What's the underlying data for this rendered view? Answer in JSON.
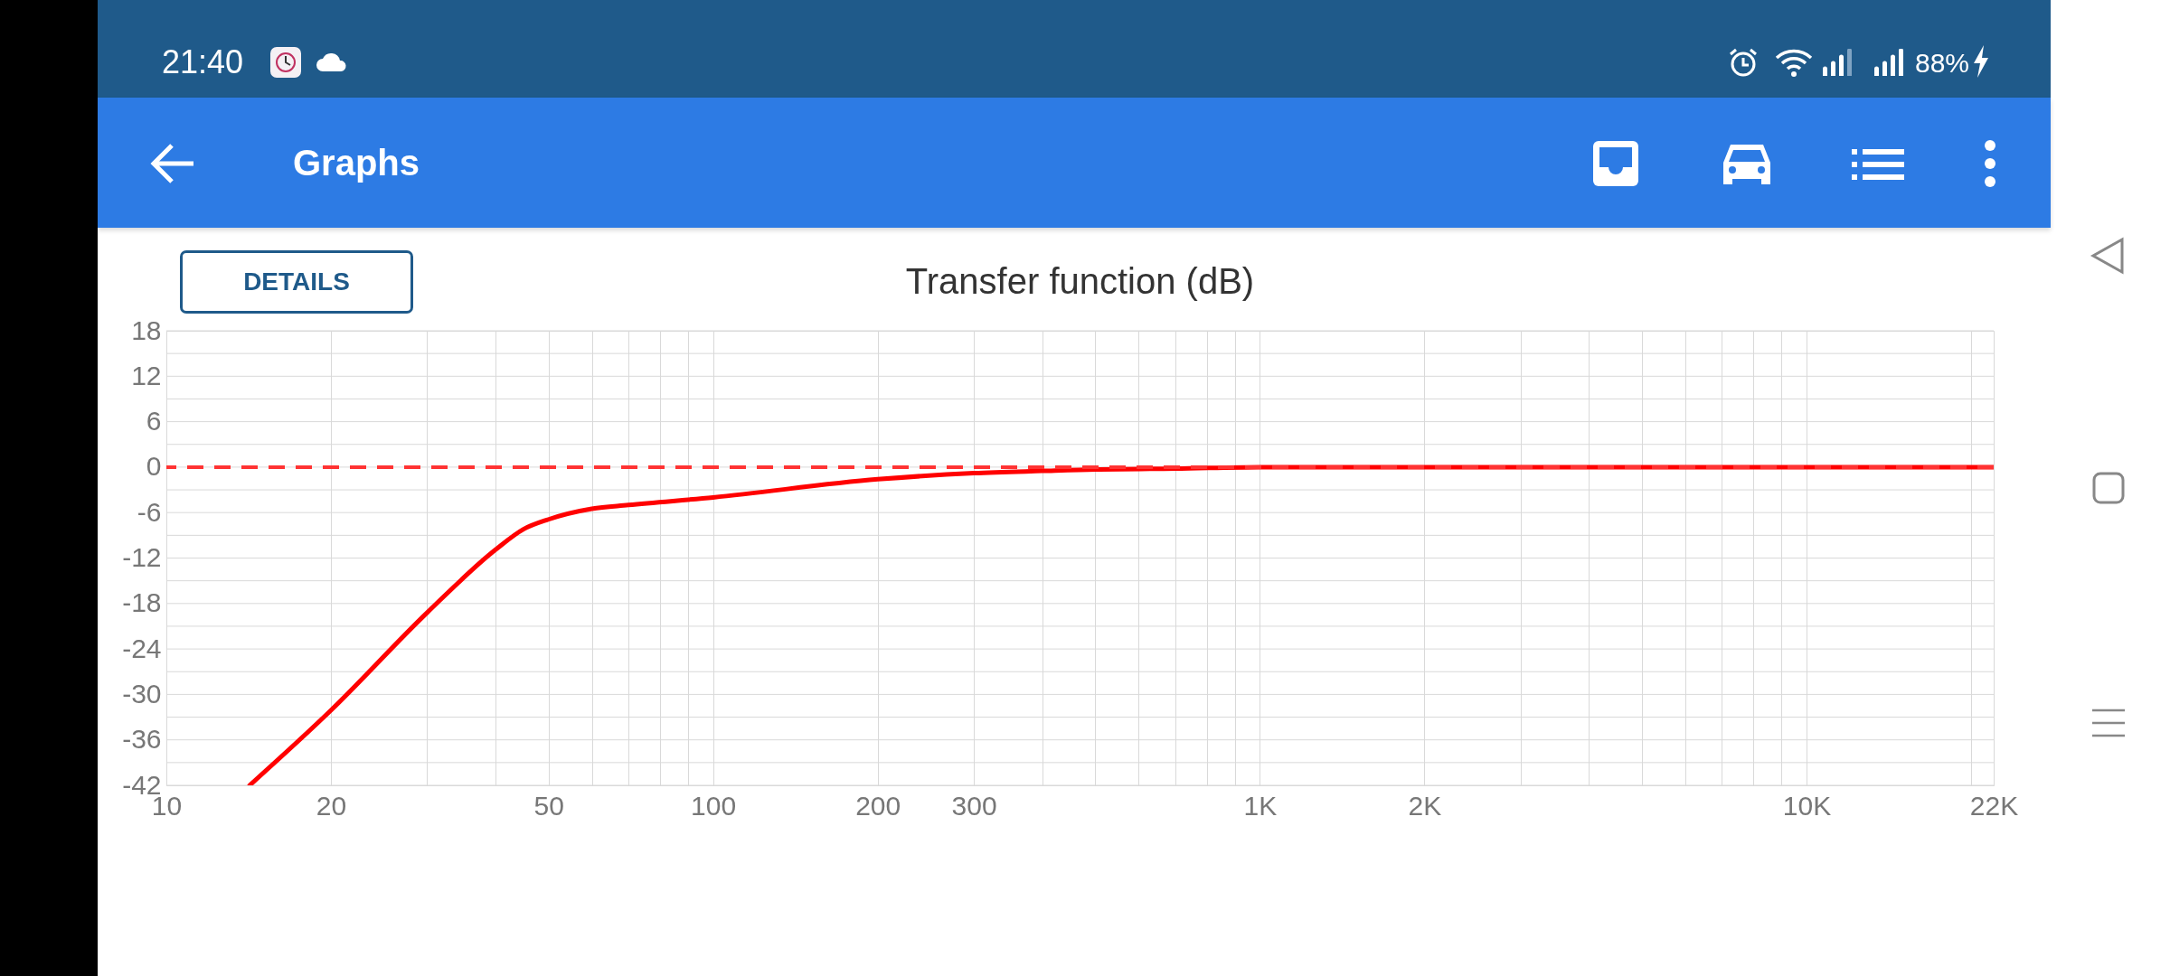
{
  "chart_data": {
    "type": "line",
    "title": "Transfer function (dB)",
    "x": [
      14.2,
      20,
      30,
      40,
      45,
      50,
      60,
      70,
      100,
      200,
      300,
      400,
      500,
      700,
      1000,
      2000,
      22000
    ],
    "series": [
      {
        "color": "#ff0000",
        "values": [
          -42,
          -32.1,
          -19.2,
          -10.9,
          -8.2,
          -6.9,
          -5.5,
          -5.0,
          -4.0,
          -1.6,
          -0.8,
          -0.5,
          -0.3,
          -0.2,
          0,
          0,
          0
        ]
      }
    ],
    "log": "x",
    "xlim": [
      10,
      22000
    ],
    "ylim": [
      -42,
      18
    ],
    "xticks": [
      10,
      20,
      {
        "value": 30,
        "label": null
      },
      {
        "value": 40,
        "label": null
      },
      50,
      {
        "value": 60,
        "label": null
      },
      {
        "value": 70,
        "label": null
      },
      {
        "value": 80,
        "label": null
      },
      {
        "value": 90,
        "label": null
      },
      100,
      200,
      300,
      {
        "value": 400,
        "label": null
      },
      {
        "value": 500,
        "label": null
      },
      {
        "value": 600,
        "label": null
      },
      {
        "value": 700,
        "label": null
      },
      {
        "value": 800,
        "label": null
      },
      {
        "value": 900,
        "label": null
      },
      {
        "value": 1000,
        "label": "1K"
      },
      {
        "value": 2000,
        "label": "2K"
      },
      {
        "value": 3000,
        "label": null
      },
      {
        "value": 4000,
        "label": null
      },
      {
        "value": 5000,
        "label": null
      },
      {
        "value": 6000,
        "label": null
      },
      {
        "value": 7000,
        "label": null
      },
      {
        "value": 8000,
        "label": null
      },
      {
        "value": 9000,
        "label": null
      },
      {
        "value": 10000,
        "label": "10K"
      },
      {
        "value": 20000,
        "label": null
      },
      {
        "value": 22000,
        "label": "22K"
      }
    ],
    "yticks": [
      -42,
      {
        "value": -39,
        "label": null
      },
      -36,
      {
        "value": -33,
        "label": null
      },
      -30,
      {
        "value": -27,
        "label": null
      },
      -24,
      {
        "value": -21,
        "label": null
      },
      -18,
      {
        "value": -15,
        "label": null
      },
      -12,
      {
        "value": -9,
        "label": null
      },
      -6,
      {
        "value": -3,
        "label": null
      },
      0,
      {
        "value": 3,
        "label": null
      },
      6,
      {
        "value": 9,
        "label": null
      },
      12,
      {
        "value": 15,
        "label": null
      },
      18
    ],
    "ref_lines": [
      {
        "axis": "y",
        "value": 0,
        "color": "#ff3333",
        "line_style": "dashed"
      }
    ],
    "grid": true,
    "line_style": "solid",
    "marker": "none",
    "annotations": [
      "21:40",
      "88%",
      "Graphs",
      "DETAILS"
    ]
  }
}
